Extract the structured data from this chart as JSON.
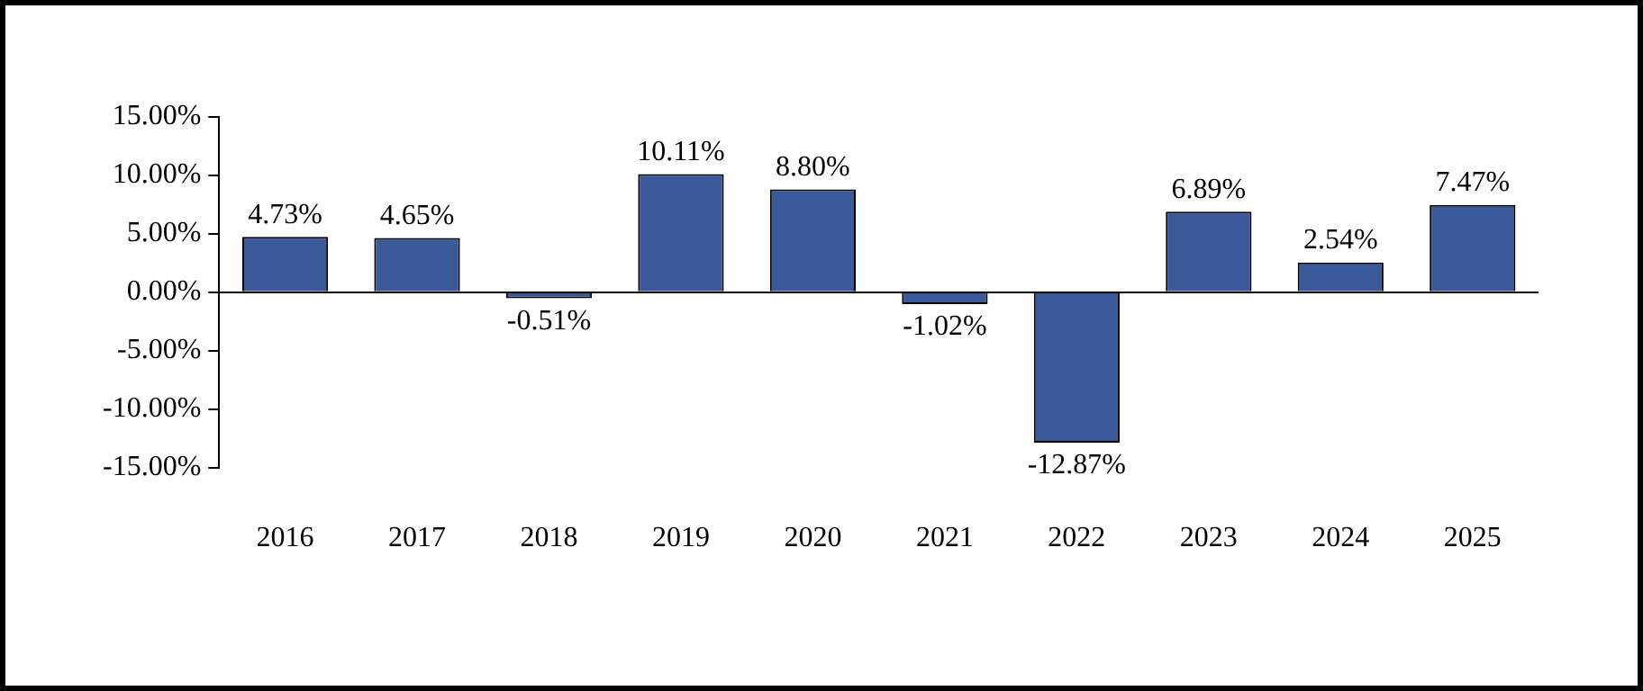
{
  "chart_data": {
    "type": "bar",
    "categories": [
      "2016",
      "2017",
      "2018",
      "2019",
      "2020",
      "2021",
      "2022",
      "2023",
      "2024",
      "2025"
    ],
    "values": [
      4.73,
      4.65,
      -0.51,
      10.11,
      8.8,
      -1.02,
      -12.87,
      6.89,
      2.54,
      7.47
    ],
    "value_labels": [
      "4.73%",
      "4.65%",
      "-0.51%",
      "10.11%",
      "8.80%",
      "-1.02%",
      "-12.87%",
      "6.89%",
      "2.54%",
      "7.47%"
    ],
    "color": "#3a5998",
    "ylim": [
      -15,
      15
    ],
    "yticks": [
      {
        "value": -15,
        "label": "-15.00%"
      },
      {
        "value": -10,
        "label": "-10.00%"
      },
      {
        "value": -5,
        "label": "-5.00%"
      },
      {
        "value": 0,
        "label": "0.00%"
      },
      {
        "value": 5,
        "label": "5.00%"
      },
      {
        "value": 10,
        "label": "10.00%"
      },
      {
        "value": 15,
        "label": "15.00%"
      }
    ],
    "legend": false
  }
}
